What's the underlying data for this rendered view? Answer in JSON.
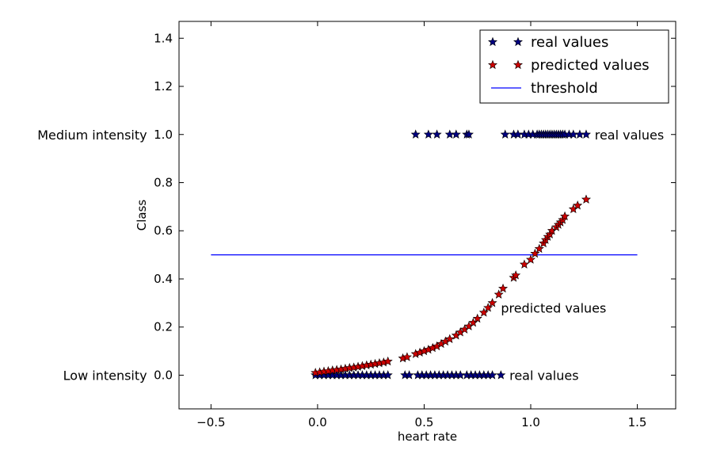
{
  "chart_data": {
    "type": "scatter",
    "title": "",
    "xlabel": "heart rate",
    "ylabel": "Class",
    "xlim": [
      -0.65,
      1.68
    ],
    "ylim": [
      -0.14,
      1.47
    ],
    "xticks": [
      -0.5,
      0.0,
      0.5,
      1.0,
      1.5
    ],
    "xtick_labels": [
      "−0.5",
      "0.0",
      "0.5",
      "1.0",
      "1.5"
    ],
    "yticks": [
      0.0,
      0.2,
      0.4,
      0.6,
      0.8,
      1.0,
      1.2,
      1.4
    ],
    "ytick_labels": [
      "0.0",
      "0.2",
      "0.4",
      "0.6",
      "0.8",
      "1.0",
      "1.2",
      "1.4"
    ],
    "grid": false,
    "legend": {
      "position": "top-right",
      "entries": [
        "real values",
        "predicted values",
        "threshold"
      ]
    },
    "colors": {
      "real": "#000080",
      "predicted": "#cc0000",
      "threshold": "#0000ff"
    },
    "series": [
      {
        "name": "real values",
        "marker": "star",
        "x": [
          -0.01,
          0.01,
          0.03,
          0.05,
          0.07,
          0.09,
          0.11,
          0.13,
          0.15,
          0.17,
          0.19,
          0.21,
          0.23,
          0.25,
          0.27,
          0.29,
          0.31,
          0.33,
          0.41,
          0.43,
          0.47,
          0.49,
          0.51,
          0.53,
          0.55,
          0.57,
          0.59,
          0.61,
          0.63,
          0.65,
          0.67,
          0.7,
          0.72,
          0.74,
          0.76,
          0.78,
          0.8,
          0.82,
          0.86,
          0.46,
          0.52,
          0.56,
          0.62,
          0.65,
          0.7,
          0.71,
          0.88,
          0.92,
          0.94,
          0.97,
          0.99,
          1.01,
          1.03,
          1.04,
          1.05,
          1.06,
          1.07,
          1.08,
          1.09,
          1.1,
          1.11,
          1.12,
          1.13,
          1.14,
          1.15,
          1.16,
          1.18,
          1.2,
          1.23,
          1.26
        ],
        "y": [
          0,
          0,
          0,
          0,
          0,
          0,
          0,
          0,
          0,
          0,
          0,
          0,
          0,
          0,
          0,
          0,
          0,
          0,
          0,
          0,
          0,
          0,
          0,
          0,
          0,
          0,
          0,
          0,
          0,
          0,
          0,
          0,
          0,
          0,
          0,
          0,
          0,
          0,
          0,
          1,
          1,
          1,
          1,
          1,
          1,
          1,
          1,
          1,
          1,
          1,
          1,
          1,
          1,
          1,
          1,
          1,
          1,
          1,
          1,
          1,
          1,
          1,
          1,
          1,
          1,
          1,
          1,
          1,
          1,
          1
        ]
      },
      {
        "name": "predicted values",
        "marker": "star",
        "x": [
          -0.01,
          0.01,
          0.03,
          0.05,
          0.07,
          0.09,
          0.11,
          0.13,
          0.15,
          0.17,
          0.19,
          0.21,
          0.23,
          0.25,
          0.27,
          0.29,
          0.31,
          0.33,
          0.4,
          0.42,
          0.46,
          0.48,
          0.5,
          0.52,
          0.54,
          0.56,
          0.58,
          0.6,
          0.62,
          0.65,
          0.67,
          0.69,
          0.71,
          0.73,
          0.75,
          0.78,
          0.8,
          0.82,
          0.85,
          0.87,
          0.92,
          0.93,
          0.97,
          1.0,
          1.02,
          1.04,
          1.06,
          1.07,
          1.08,
          1.09,
          1.1,
          1.12,
          1.13,
          1.14,
          1.15,
          1.16,
          1.2,
          1.22,
          1.26
        ],
        "y": [
          0.01,
          0.012,
          0.015,
          0.017,
          0.02,
          0.022,
          0.024,
          0.027,
          0.03,
          0.032,
          0.035,
          0.038,
          0.041,
          0.044,
          0.047,
          0.05,
          0.053,
          0.057,
          0.07,
          0.075,
          0.088,
          0.094,
          0.1,
          0.106,
          0.113,
          0.12,
          0.13,
          0.14,
          0.15,
          0.165,
          0.178,
          0.19,
          0.203,
          0.218,
          0.235,
          0.26,
          0.28,
          0.3,
          0.335,
          0.36,
          0.405,
          0.415,
          0.46,
          0.48,
          0.505,
          0.525,
          0.548,
          0.562,
          0.575,
          0.585,
          0.6,
          0.615,
          0.625,
          0.635,
          0.645,
          0.66,
          0.69,
          0.705,
          0.73
        ]
      },
      {
        "name": "threshold",
        "marker": "line",
        "x": [
          -0.5,
          1.5
        ],
        "y": [
          0.5,
          0.5
        ]
      }
    ],
    "annotations": [
      {
        "text": "Medium intensity",
        "x": -0.8,
        "y": 1.0,
        "align": "right"
      },
      {
        "text": "Low intensity",
        "x": -0.8,
        "y": 0.0,
        "align": "right"
      },
      {
        "text": "real values",
        "x": 1.3,
        "y": 1.0,
        "align": "left"
      },
      {
        "text": "predicted values",
        "x": 0.86,
        "y": 0.28,
        "align": "left"
      },
      {
        "text": "real values",
        "x": 0.9,
        "y": 0.0,
        "align": "left"
      }
    ]
  }
}
